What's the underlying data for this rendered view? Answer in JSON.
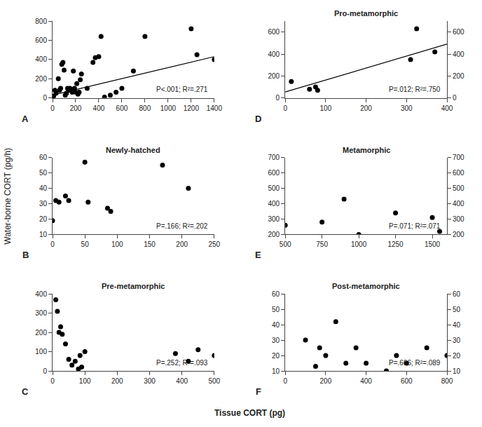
{
  "chart_data": [
    {
      "type": "scatter",
      "label": "A",
      "series": [
        {
          "type": "scatter",
          "color": "#000000",
          "x": [
            5,
            10,
            20,
            30,
            50,
            60,
            70,
            80,
            90,
            100,
            110,
            120,
            130,
            140,
            150,
            160,
            170,
            180,
            190,
            200,
            210,
            220,
            230,
            240,
            250,
            300,
            350,
            370,
            400,
            420,
            450,
            500,
            550,
            600,
            700,
            800,
            1200,
            1250,
            1400
          ],
          "values": [
            10,
            20,
            80,
            50,
            200,
            80,
            100,
            350,
            370,
            290,
            30,
            50,
            100,
            80,
            100,
            80,
            60,
            280,
            100,
            60,
            150,
            40,
            60,
            190,
            250,
            100,
            370,
            420,
            430,
            640,
            10,
            30,
            60,
            100,
            280,
            640,
            720,
            450,
            400
          ]
        },
        {
          "type": "line",
          "color": "#000000",
          "x": [
            0,
            1400
          ],
          "values": [
            30,
            430
          ]
        }
      ],
      "xlim": [
        0,
        1400
      ],
      "ylim": [
        0,
        800
      ],
      "xticks": [
        0,
        200,
        400,
        600,
        800,
        1000,
        1200,
        1400
      ],
      "yticks": [
        0,
        200,
        400,
        600,
        800
      ],
      "annotation": "P<.001; R²=.271",
      "grid": false
    },
    {
      "type": "scatter",
      "title": "Pro-metamorphic",
      "label": "D",
      "series": [
        {
          "type": "scatter",
          "color": "#000000",
          "x": [
            15,
            60,
            75,
            80,
            310,
            325,
            370
          ],
          "values": [
            150,
            80,
            100,
            70,
            350,
            630,
            420
          ]
        },
        {
          "type": "line",
          "color": "#000000",
          "x": [
            0,
            400
          ],
          "values": [
            55,
            490
          ]
        }
      ],
      "xlim": [
        0,
        400
      ],
      "ylim": [
        0,
        700
      ],
      "xticks": [
        0,
        100,
        200,
        300,
        400
      ],
      "yticks": [
        0,
        200,
        400,
        600
      ],
      "y2lim": [
        0,
        700
      ],
      "y2ticks": [
        0,
        200,
        400,
        600
      ],
      "annotation": "P=.012; R²=.750",
      "grid": false
    },
    {
      "type": "scatter",
      "title": "Newly-hatched",
      "label": "B",
      "series": [
        {
          "type": "scatter",
          "color": "#000000",
          "x": [
            0,
            5,
            10,
            20,
            25,
            50,
            55,
            85,
            90,
            170,
            210
          ],
          "values": [
            19,
            32,
            31,
            35,
            32,
            57,
            31,
            27,
            25,
            55,
            40
          ]
        }
      ],
      "xlim": [
        0,
        250
      ],
      "ylim": [
        10,
        60
      ],
      "xticks": [
        0,
        50,
        100,
        150,
        200,
        250
      ],
      "yticks": [
        10,
        20,
        30,
        40,
        50,
        60
      ],
      "annotation": "P=.166; R²=.202",
      "grid": false
    },
    {
      "type": "scatter",
      "title": "Metamorphic",
      "label": "E",
      "series": [
        {
          "type": "scatter",
          "color": "#000000",
          "x": [
            500,
            750,
            900,
            1000,
            1250,
            1500,
            1550
          ],
          "values": [
            260,
            280,
            430,
            200,
            340,
            310,
            220
          ]
        }
      ],
      "xlim": [
        500,
        1600
      ],
      "ylim": [
        200,
        700
      ],
      "xticks": [
        500,
        750,
        1000,
        1250,
        1500
      ],
      "yticks": [
        200,
        300,
        400,
        500,
        600,
        700
      ],
      "y2lim": [
        200,
        700
      ],
      "y2ticks": [
        200,
        300,
        400,
        500,
        600,
        700
      ],
      "annotation": "P=.071; R²=.071",
      "grid": false
    },
    {
      "type": "scatter",
      "title": "Pre-metamorphic",
      "label": "C",
      "series": [
        {
          "type": "scatter",
          "color": "#000000",
          "x": [
            10,
            15,
            20,
            25,
            30,
            40,
            50,
            60,
            70,
            80,
            85,
            90,
            100,
            380,
            420,
            450,
            500
          ],
          "values": [
            370,
            310,
            200,
            230,
            190,
            140,
            60,
            30,
            50,
            10,
            80,
            20,
            100,
            90,
            50,
            110,
            80
          ]
        }
      ],
      "xlim": [
        0,
        500
      ],
      "ylim": [
        0,
        400
      ],
      "xticks": [
        0,
        100,
        200,
        300,
        400,
        500
      ],
      "yticks": [
        0,
        100,
        200,
        300,
        400
      ],
      "annotation": "P=.252; R²=.093",
      "grid": false
    },
    {
      "type": "scatter",
      "title": "Post-metamorphic",
      "label": "F",
      "series": [
        {
          "type": "scatter",
          "color": "#000000",
          "x": [
            100,
            150,
            170,
            200,
            250,
            300,
            350,
            400,
            500,
            550,
            600,
            700,
            800
          ],
          "values": [
            30,
            13,
            25,
            20,
            42,
            15,
            25,
            15,
            10,
            20,
            15,
            25,
            20
          ]
        }
      ],
      "xlim": [
        0,
        800
      ],
      "ylim": [
        10,
        60
      ],
      "xticks": [
        0,
        200,
        400,
        600,
        800
      ],
      "yticks": [
        10,
        20,
        30,
        40,
        50,
        60
      ],
      "y2lim": [
        10,
        60
      ],
      "y2ticks": [
        10,
        20,
        30,
        40,
        50,
        60
      ],
      "annotation": "P=.666; R²=.089",
      "grid": false
    }
  ],
  "xlabel": "Tissue CORT (pg)",
  "ylabel": "Water-borne CORT (pg/h)"
}
